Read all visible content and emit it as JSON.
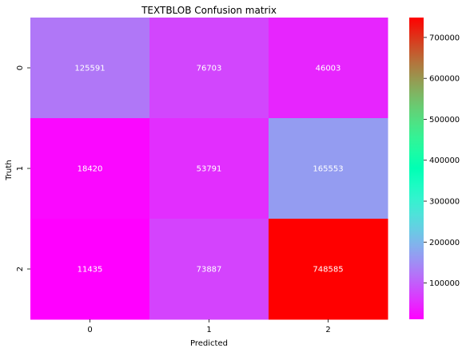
{
  "chart_data": {
    "type": "heatmap",
    "title": "TEXTBLOB Confusion matrix",
    "xlabel": "Predicted",
    "ylabel": "Truth",
    "x_categories": [
      "0",
      "1",
      "2"
    ],
    "y_categories": [
      "0",
      "1",
      "2"
    ],
    "values": [
      [
        125591,
        76703,
        46003
      ],
      [
        18420,
        53791,
        165553
      ],
      [
        11435,
        73887,
        748585
      ]
    ],
    "colormap": "rainbow",
    "color_range": [
      11435,
      748585
    ],
    "colorbar_ticks": [
      100000,
      200000,
      300000,
      400000,
      500000,
      600000,
      700000
    ],
    "colorbar_tick_labels": [
      "100000",
      "200000",
      "300000",
      "400000",
      "500000",
      "600000",
      "700000"
    ],
    "annotation_color": "#ffffff",
    "grid": false
  }
}
